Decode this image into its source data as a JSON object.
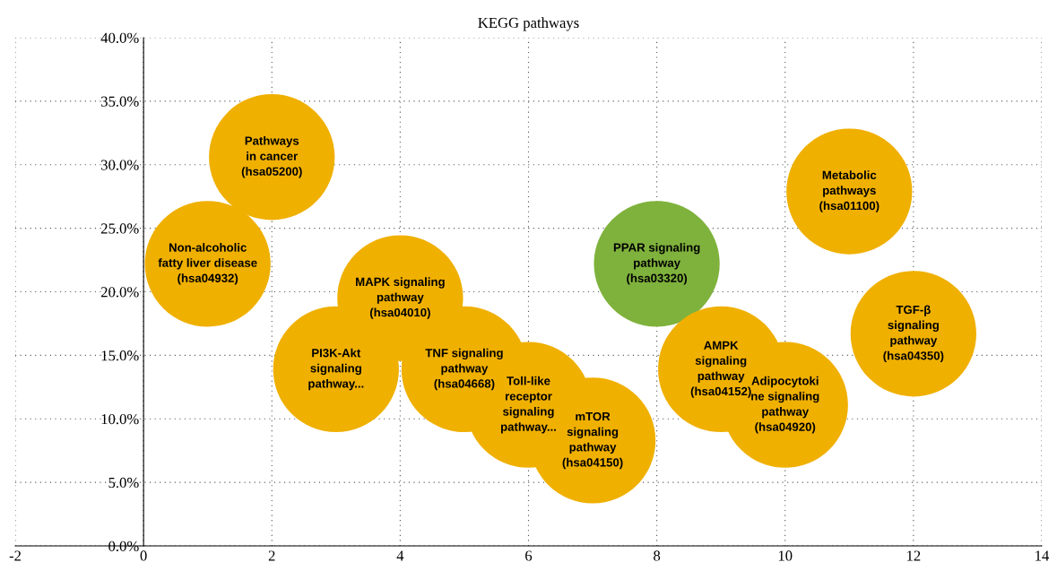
{
  "chart_data": {
    "type": "bubble",
    "title": "KEGG pathways",
    "x": [
      1,
      2,
      3,
      4,
      5,
      6,
      7,
      8,
      9,
      10,
      11,
      12
    ],
    "values": [
      22.2,
      30.6,
      13.9,
      19.5,
      13.9,
      11.1,
      8.3,
      22.2,
      13.9,
      11.1,
      27.9,
      16.7
    ],
    "sizes": [
      1,
      1,
      1,
      1,
      1,
      1,
      1,
      1,
      1,
      1,
      1,
      1
    ],
    "colors": [
      "#f0b000",
      "#f0b000",
      "#f0b000",
      "#f0b000",
      "#f0b000",
      "#f0b000",
      "#f0b000",
      "#7fb23c",
      "#f0b000",
      "#f0b000",
      "#f0b000",
      "#f0b000"
    ],
    "value_labels": [
      "Non-alcoholic\nfatty liver disease\n(hsa04932)",
      "Pathways\nin cancer\n(hsa05200)",
      "PI3K-Akt\nsignaling\npathway...",
      "MAPK signaling\npathway\n(hsa04010)",
      "TNF signaling\npathway\n(hsa04668)",
      "Toll-like\nreceptor\nsignaling\npathway...",
      "mTOR\nsignaling\npathway\n(hsa04150)",
      "PPAR signaling\npathway\n(hsa03320)",
      "AMPK\nsignaling\npathway\n(hsa04152)",
      "Adipocytoki\nne signaling\npathway\n(hsa04920)",
      "Metabolic\npathways\n(hsa01100)",
      "TGF-β\nsignaling\npathway\n(hsa04350)"
    ],
    "xlim": [
      -2,
      14
    ],
    "xticks": [
      -2,
      0,
      2,
      4,
      6,
      8,
      10,
      12,
      14
    ],
    "ylim": [
      0,
      40
    ],
    "yticks": [
      {
        "value": 0,
        "label": "0.0%"
      },
      {
        "value": 5,
        "label": "5.0%"
      },
      {
        "value": 10,
        "label": "10.0%"
      },
      {
        "value": 15,
        "label": "15.0%"
      },
      {
        "value": 20,
        "label": "20.0%"
      },
      {
        "value": 25,
        "label": "25.0%"
      },
      {
        "value": 30,
        "label": "30.0%"
      },
      {
        "value": 35,
        "label": "35.0%"
      },
      {
        "value": 40,
        "label": "40.0%"
      }
    ],
    "grid": true
  }
}
